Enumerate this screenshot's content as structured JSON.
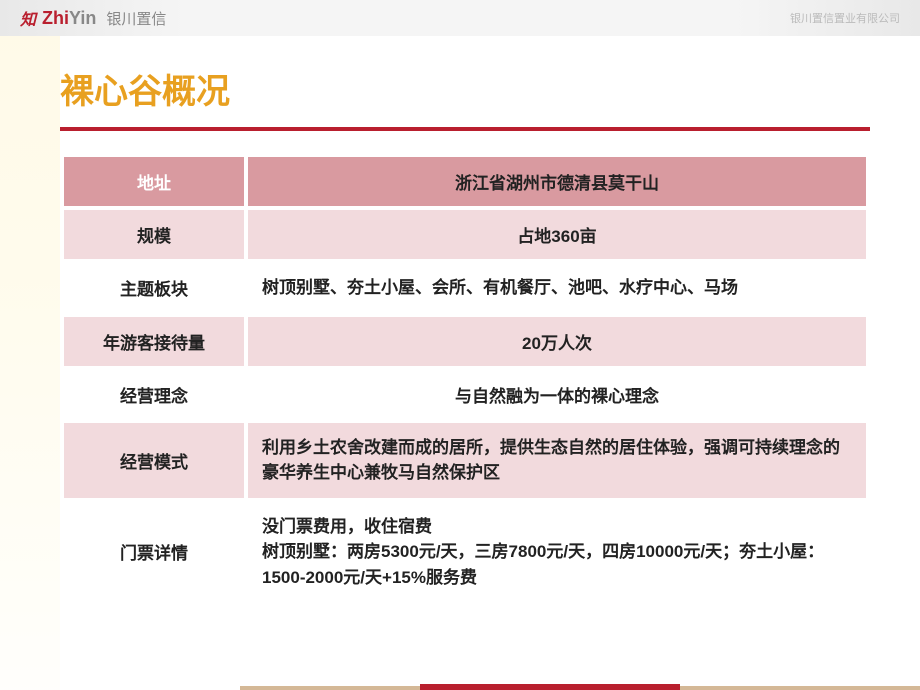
{
  "header": {
    "logo_mark": "知",
    "logo_en_red": "Zhi",
    "logo_en_gray": "Yin",
    "logo_cn": "银川置信",
    "right_text": "银川置信置业有限公司"
  },
  "title": "裸心谷概况",
  "colors": {
    "title_color": "#e8a020",
    "underline_color": "#b91f2e",
    "row_dark_bg": "#d99aa0",
    "row_light_bg": "#f2dadd",
    "row_white_bg": "#ffffff",
    "header_label_color": "#ffffff",
    "text_color": "#222222"
  },
  "typography": {
    "title_fontsize": 34,
    "cell_fontsize": 17,
    "cell_fontweight": "bold"
  },
  "table": {
    "rows": [
      {
        "label": "地址",
        "value": "浙江省湖州市德清县莫干山",
        "align": "center"
      },
      {
        "label": "规模",
        "value": "占地360亩",
        "align": "center"
      },
      {
        "label": "主题板块",
        "value": "树顶别墅、夯土小屋、会所、有机餐厅、池吧、水疗中心、马场",
        "align": "left"
      },
      {
        "label": "年游客接待量",
        "value": "20万人次",
        "align": "center"
      },
      {
        "label": "经营理念",
        "value": "与自然融为一体的裸心理念",
        "align": "center"
      },
      {
        "label": "经营模式",
        "value": "利用乡土农舍改建而成的居所，提供生态自然的居住体验，强调可持续理念的豪华养生中心兼牧马自然保护区",
        "align": "left"
      },
      {
        "label": "门票详情",
        "value": "没门票费用，收住宿费\n树顶别墅：两房5300元/天，三房7800元/天，四房10000元/天；夯土小屋：1500-2000元/天+15%服务费",
        "align": "left"
      }
    ]
  }
}
